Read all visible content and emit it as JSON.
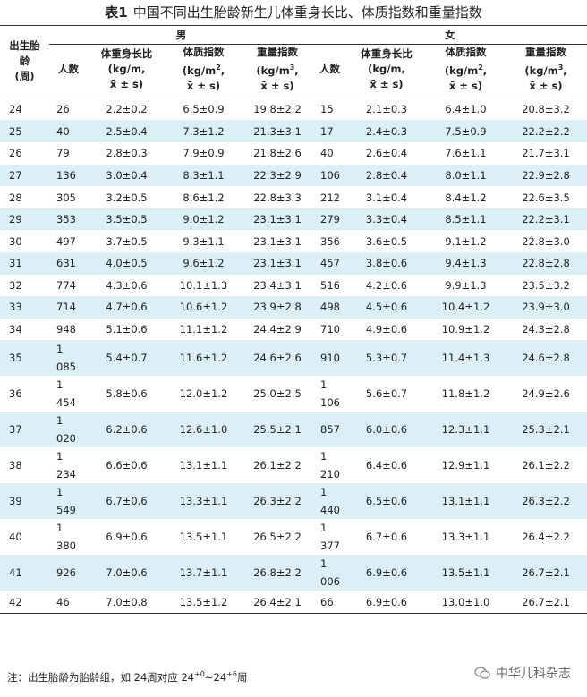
{
  "title": {
    "label": "表1",
    "text": "中国不同出生胎龄新生儿体重身长比、体质指数和重量指数"
  },
  "table": {
    "age_header": [
      "出生胎",
      "龄",
      "(周)"
    ],
    "groups": [
      "男",
      "女"
    ],
    "columns": [
      {
        "name": "人数"
      },
      {
        "name": "体重身长比",
        "unit": "(kg/m,",
        "stat": "x̄ ± s)"
      },
      {
        "name": "体质指数",
        "unit": "(kg/m",
        "sup": "2",
        "unit_after": ",",
        "stat": "x̄ ± s)"
      },
      {
        "name": "重量指数",
        "unit": "(kg/m",
        "sup": "3",
        "unit_after": ",",
        "stat": "x̄ ± s)"
      }
    ],
    "rows": [
      [
        "24",
        "26",
        "2.2±0.2",
        "6.5±0.9",
        "19.8±2.2",
        "15",
        "2.1±0.3",
        "6.4±1.0",
        "20.8±3.2"
      ],
      [
        "25",
        "40",
        "2.5±0.4",
        "7.3±1.2",
        "21.3±3.1",
        "17",
        "2.4±0.3",
        "7.5±0.9",
        "22.2±2.2"
      ],
      [
        "26",
        "79",
        "2.8±0.3",
        "7.9±0.9",
        "21.8±2.6",
        "40",
        "2.6±0.4",
        "7.6±1.1",
        "21.7±3.1"
      ],
      [
        "27",
        "136",
        "3.0±0.4",
        "8.3±1.1",
        "22.3±2.9",
        "106",
        "2.8±0.4",
        "8.0±1.1",
        "22.9±2.8"
      ],
      [
        "28",
        "305",
        "3.2±0.5",
        "8.6±1.2",
        "22.8±3.3",
        "212",
        "3.1±0.4",
        "8.4±1.2",
        "22.6±3.5"
      ],
      [
        "29",
        "353",
        "3.5±0.5",
        "9.0±1.2",
        "23.1±3.1",
        "279",
        "3.3±0.4",
        "8.5±1.1",
        "22.2±3.1"
      ],
      [
        "30",
        "497",
        "3.7±0.5",
        "9.3±1.1",
        "23.1±3.1",
        "356",
        "3.6±0.5",
        "9.1±1.2",
        "22.8±3.0"
      ],
      [
        "31",
        "631",
        "4.0±0.5",
        "9.6±1.2",
        "23.1±3.1",
        "457",
        "3.8±0.6",
        "9.4±1.3",
        "22.8±2.8"
      ],
      [
        "32",
        "774",
        "4.3±0.6",
        "10.1±1.3",
        "23.4±3.1",
        "516",
        "4.2±0.6",
        "9.9±1.3",
        "23.5±3.2"
      ],
      [
        "33",
        "714",
        "4.7±0.6",
        "10.6±1.2",
        "23.9±2.8",
        "498",
        "4.5±0.6",
        "10.4±1.2",
        "23.9±3.0"
      ],
      [
        "34",
        "948",
        "5.1±0.6",
        "11.1±1.2",
        "24.4±2.9",
        "710",
        "4.9±0.6",
        "10.9±1.2",
        "24.3±2.8"
      ],
      [
        "35",
        "1 085",
        "5.4±0.7",
        "11.6±1.2",
        "24.6±2.6",
        "910",
        "5.3±0.7",
        "11.4±1.3",
        "24.6±2.8"
      ],
      [
        "36",
        "1 454",
        "5.8±0.6",
        "12.0±1.2",
        "25.0±2.5",
        "1 106",
        "5.6±0.7",
        "11.8±1.2",
        "24.9±2.6"
      ],
      [
        "37",
        "1 020",
        "6.2±0.6",
        "12.6±1.0",
        "25.5±2.1",
        "857",
        "6.0±0.6",
        "12.3±1.1",
        "25.3±2.1"
      ],
      [
        "38",
        "1 234",
        "6.6±0.6",
        "13.1±1.1",
        "26.1±2.2",
        "1 210",
        "6.4±0.6",
        "12.9±1.1",
        "26.1±2.2"
      ],
      [
        "39",
        "1 549",
        "6.7±0.6",
        "13.3±1.1",
        "26.3±2.2",
        "1 440",
        "6.5±0.6",
        "13.1±1.1",
        "26.3±2.2"
      ],
      [
        "40",
        "1 380",
        "6.9±0.6",
        "13.5±1.1",
        "26.5±2.2",
        "1 377",
        "6.7±0.6",
        "13.3±1.1",
        "26.4±2.2"
      ],
      [
        "41",
        "926",
        "7.0±0.6",
        "13.7±1.1",
        "26.8±2.2",
        "1 006",
        "6.9±0.6",
        "13.5±1.1",
        "26.7±2.1"
      ],
      [
        "42",
        "46",
        "7.0±0.8",
        "13.5±1.2",
        "26.4±2.1",
        "66",
        "6.9±0.6",
        "13.0±1.0",
        "26.7±2.1"
      ]
    ]
  },
  "note": {
    "text": "注：出生胎龄为胎龄组，如 24周对应 24",
    "sup1": "+0",
    "mid": "~24",
    "sup2": "+6",
    "end": "周"
  },
  "watermark": "中华儿科杂志"
}
